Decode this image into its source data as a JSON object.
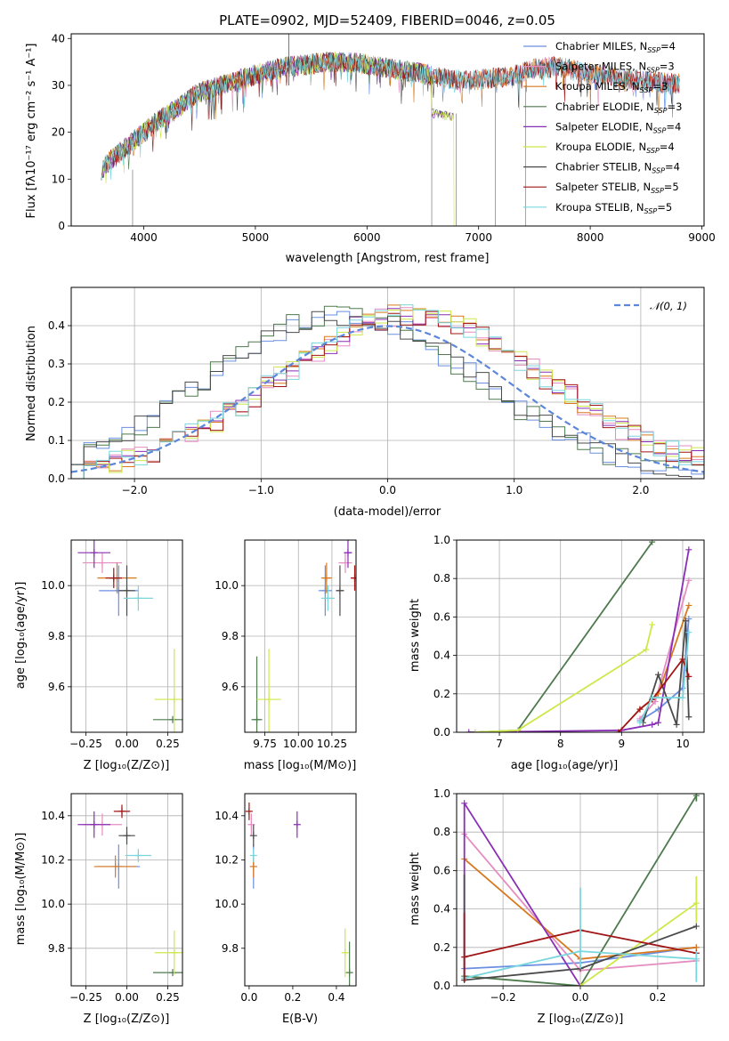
{
  "colors": {
    "Chabrier MILES": "#6a8fe0",
    "Salpeter MILES": "#e58cc0",
    "Kroupa MILES": "#d8791f",
    "Chabrier ELODIE": "#4e7a4e",
    "Salpeter ELODIE": "#8a2fb5",
    "Kroupa ELODIE": "#cde84a",
    "Chabrier STELIB": "#4a4a4a",
    "Salpeter STELIB": "#a01515",
    "Kroupa STELIB": "#78d6dd",
    "normal_curve": "#5b86d9",
    "grid": "#b0b0b0"
  },
  "chart_data": [
    {
      "type": "line",
      "title": "PLATE=0902, MJD=52409, FIBERID=0046, z=0.05",
      "xlabel": "wavelength [Angstrom, rest frame]",
      "ylabel": "Flux [fλ10⁻¹⁷ erg cm⁻² s⁻¹ A⁻¹]",
      "xlim": [
        3350,
        9020
      ],
      "ylim": [
        0,
        41
      ],
      "xticks": [
        4000,
        5000,
        6000,
        7000,
        8000,
        9000
      ],
      "yticks": [
        0,
        10,
        20,
        30,
        40
      ],
      "grid": false,
      "legend_position": "top-right",
      "legend": [
        {
          "base": "Chabrier MILES, N",
          "sub": "SSP",
          "tail": "=4"
        },
        {
          "base": "Salpeter MILES, N",
          "sub": "SSP",
          "tail": "=3"
        },
        {
          "base": "Kroupa MILES, N",
          "sub": "SSP",
          "tail": "=3"
        },
        {
          "base": "Chabrier ELODIE, N",
          "sub": "SSP",
          "tail": "=3"
        },
        {
          "base": "Salpeter ELODIE, N",
          "sub": "SSP",
          "tail": "=4"
        },
        {
          "base": "Kroupa ELODIE, N",
          "sub": "SSP",
          "tail": "=4"
        },
        {
          "base": "Chabrier STELIB, N",
          "sub": "SSP",
          "tail": "=4"
        },
        {
          "base": "Salpeter STELIB, N",
          "sub": "SSP",
          "tail": "=5"
        },
        {
          "base": "Kroupa STELIB, N",
          "sub": "SSP",
          "tail": "=5"
        }
      ],
      "continuum_x": [
        3620,
        3700,
        3800,
        3900,
        4000,
        4100,
        4200,
        4300,
        4400,
        4500,
        4700,
        4900,
        5100,
        5300,
        5500,
        5700,
        5900,
        6100,
        6300,
        6500,
        6700,
        6900,
        7100,
        7300,
        7500,
        7700,
        7900,
        8100,
        8300,
        8500,
        8700,
        8800
      ],
      "continuum_y": [
        12,
        14,
        16,
        18,
        20,
        22,
        23.5,
        25,
        27,
        28.5,
        30,
        31.5,
        33,
        34,
        34.5,
        35,
        34.8,
        34,
        33.2,
        32.5,
        31.5,
        31,
        31.5,
        32,
        33.5,
        34,
        33,
        32.2,
        31.5,
        30.8,
        30.5,
        30.3
      ]
    },
    {
      "type": "line",
      "xlabel": "(data-model)/error",
      "ylabel": "Normed distribution",
      "xlim": [
        -2.5,
        2.5
      ],
      "ylim": [
        0,
        0.5
      ],
      "xticks": [
        -2,
        -1,
        0,
        1,
        2
      ],
      "yticks": [
        0.0,
        0.1,
        0.2,
        0.3,
        0.4
      ],
      "grid": true,
      "legend_position": "top-right",
      "legend": [
        "𝒩(0, 1)"
      ],
      "series": [
        {
          "name": "𝒩(0, 1)",
          "kind": "gaussian",
          "mean": 0,
          "sigma": 1
        }
      ]
    },
    {
      "type": "scatter",
      "xlabel": "Z [log₁₀(Z/Z⊙)]",
      "ylabel": "age  [log₁₀(age/yr)]",
      "xlim": [
        -0.34,
        0.34
      ],
      "ylim": [
        9.42,
        10.18
      ],
      "xticks": [
        -0.25,
        0.0,
        0.25
      ],
      "yticks": [
        9.6,
        9.8,
        10.0
      ],
      "grid": true,
      "points": [
        {
          "model": "Chabrier MILES",
          "x": -0.05,
          "y": 9.98,
          "xerr": 0.12,
          "yerr": 0.1
        },
        {
          "model": "Salpeter MILES",
          "x": -0.15,
          "y": 10.09,
          "xerr": 0.12,
          "yerr": 0.04
        },
        {
          "model": "Kroupa MILES",
          "x": -0.06,
          "y": 10.03,
          "xerr": 0.12,
          "yerr": 0.06
        },
        {
          "model": "Chabrier ELODIE",
          "x": 0.28,
          "y": 9.47,
          "xerr": 0.12,
          "yerr": 0.0
        },
        {
          "model": "Salpeter ELODIE",
          "x": -0.2,
          "y": 10.13,
          "xerr": 0.1,
          "yerr": 0.06
        },
        {
          "model": "Kroupa ELODIE",
          "x": 0.29,
          "y": 9.55,
          "xerr": 0.12,
          "yerr": 0.2
        },
        {
          "model": "Chabrier STELIB",
          "x": 0.0,
          "y": 9.98,
          "xerr": 0.05,
          "yerr": 0.1
        },
        {
          "model": "Salpeter STELIB",
          "x": -0.08,
          "y": 10.03,
          "xerr": 0.05,
          "yerr": 0.04
        },
        {
          "model": "Kroupa STELIB",
          "x": 0.07,
          "y": 9.95,
          "xerr": 0.09,
          "yerr": 0.05
        }
      ]
    },
    {
      "type": "scatter",
      "xlabel": "mass [log₁₀(M/M⊙)]",
      "xlim": [
        9.6,
        10.43
      ],
      "ylim": [
        9.42,
        10.18
      ],
      "xticks": [
        9.75,
        10.0,
        10.25
      ],
      "yticks": [
        9.6,
        9.8,
        10.0
      ],
      "grid": true,
      "points": [
        {
          "model": "Chabrier MILES",
          "x": 10.2,
          "y": 9.98,
          "xerr": 0.05,
          "yerr": 0.1
        },
        {
          "model": "Salpeter MILES",
          "x": 10.35,
          "y": 10.09,
          "xerr": 0.05,
          "yerr": 0.04
        },
        {
          "model": "Kroupa MILES",
          "x": 10.21,
          "y": 10.03,
          "xerr": 0.04,
          "yerr": 0.06
        },
        {
          "model": "Chabrier ELODIE",
          "x": 9.69,
          "y": 9.47,
          "xerr": 0.04,
          "yerr": 0.25
        },
        {
          "model": "Salpeter ELODIE",
          "x": 10.37,
          "y": 10.13,
          "xerr": 0.03,
          "yerr": 0.06
        },
        {
          "model": "Kroupa ELODIE",
          "x": 9.78,
          "y": 9.55,
          "xerr": 0.09,
          "yerr": 0.2
        },
        {
          "model": "Chabrier STELIB",
          "x": 10.31,
          "y": 9.98,
          "xerr": 0.03,
          "yerr": 0.1
        },
        {
          "model": "Salpeter STELIB",
          "x": 10.42,
          "y": 10.03,
          "xerr": 0.03,
          "yerr": 0.05
        },
        {
          "model": "Kroupa STELIB",
          "x": 10.22,
          "y": 9.95,
          "xerr": 0.05,
          "yerr": 0.05
        }
      ]
    },
    {
      "type": "line",
      "xlabel": "age  [log₁₀(age/yr)]",
      "ylabel": "mass weight",
      "xlim": [
        6.3,
        10.35
      ],
      "ylim": [
        0,
        1
      ],
      "xticks": [
        7,
        8,
        9,
        10
      ],
      "yticks": [
        0.0,
        0.2,
        0.4,
        0.6,
        0.8,
        1.0
      ],
      "grid": true,
      "series": [
        {
          "model": "Chabrier MILES",
          "x": [
            9.3,
            9.6,
            10.0,
            10.1
          ],
          "y": [
            0.06,
            0.12,
            0.23,
            0.59
          ]
        },
        {
          "model": "Salpeter MILES",
          "x": [
            9.3,
            9.55,
            10.1
          ],
          "y": [
            0.07,
            0.16,
            0.79
          ]
        },
        {
          "model": "Kroupa MILES",
          "x": [
            9.3,
            9.6,
            10.1
          ],
          "y": [
            0.12,
            0.2,
            0.66
          ]
        },
        {
          "model": "Chabrier ELODIE",
          "x": [
            6.6,
            7.3,
            9.5
          ],
          "y": [
            0.0,
            0.01,
            0.99
          ]
        },
        {
          "model": "Salpeter ELODIE",
          "x": [
            6.5,
            9.0,
            9.5,
            9.6,
            10.1
          ],
          "y": [
            0.0,
            0.01,
            0.04,
            0.05,
            0.95
          ]
        },
        {
          "model": "Kroupa ELODIE",
          "x": [
            6.6,
            7.3,
            9.4,
            9.5
          ],
          "y": [
            0.0,
            0.01,
            0.43,
            0.56
          ]
        },
        {
          "model": "Chabrier STELIB",
          "x": [
            9.35,
            9.6,
            9.9,
            10.05,
            10.1
          ],
          "y": [
            0.05,
            0.3,
            0.04,
            0.58,
            0.08
          ]
        },
        {
          "model": "Salpeter STELIB",
          "x": [
            8.95,
            9.3,
            9.5,
            10.0,
            10.1
          ],
          "y": [
            0.0,
            0.12,
            0.17,
            0.38,
            0.29
          ]
        },
        {
          "model": "Kroupa STELIB",
          "x": [
            9.3,
            9.5,
            10.0,
            10.1
          ],
          "y": [
            0.05,
            0.18,
            0.18,
            0.52
          ]
        }
      ]
    },
    {
      "type": "scatter",
      "xlabel": "Z [log₁₀(Z/Z⊙)]",
      "ylabel": "mass [log₁₀(M/M⊙)]",
      "xlim": [
        -0.34,
        0.34
      ],
      "ylim": [
        9.63,
        10.5
      ],
      "xticks": [
        -0.25,
        0.0,
        0.25
      ],
      "yticks": [
        9.8,
        10.0,
        10.2,
        10.4
      ],
      "grid": true,
      "points": [
        {
          "model": "Chabrier MILES",
          "x": -0.05,
          "y": 10.17,
          "xerr": 0.13,
          "yerr": 0.1
        },
        {
          "model": "Salpeter MILES",
          "x": -0.15,
          "y": 10.36,
          "xerr": 0.12,
          "yerr": 0.05
        },
        {
          "model": "Kroupa MILES",
          "x": -0.07,
          "y": 10.17,
          "xerr": 0.13,
          "yerr": 0.05
        },
        {
          "model": "Chabrier ELODIE",
          "x": 0.28,
          "y": 9.69,
          "xerr": 0.12,
          "yerr": 0.0
        },
        {
          "model": "Salpeter ELODIE",
          "x": -0.2,
          "y": 10.36,
          "xerr": 0.1,
          "yerr": 0.06
        },
        {
          "model": "Kroupa ELODIE",
          "x": 0.29,
          "y": 9.78,
          "xerr": 0.12,
          "yerr": 0.1
        },
        {
          "model": "Chabrier STELIB",
          "x": 0.0,
          "y": 10.31,
          "xerr": 0.05,
          "yerr": 0.04
        },
        {
          "model": "Salpeter STELIB",
          "x": -0.03,
          "y": 10.42,
          "xerr": 0.05,
          "yerr": 0.03
        },
        {
          "model": "Kroupa STELIB",
          "x": 0.07,
          "y": 10.22,
          "xerr": 0.08,
          "yerr": 0.03
        }
      ]
    },
    {
      "type": "scatter",
      "xlabel": "E(B-V)",
      "xlim": [
        -0.02,
        0.49
      ],
      "ylim": [
        9.63,
        10.5
      ],
      "xticks": [
        0.0,
        0.2,
        0.4
      ],
      "yticks": [
        9.8,
        10.0,
        10.2,
        10.4
      ],
      "grid": false,
      "points": [
        {
          "model": "Chabrier MILES",
          "x": 0.02,
          "y": 10.17,
          "yerr": 0.1
        },
        {
          "model": "Salpeter MILES",
          "x": 0.01,
          "y": 10.36,
          "yerr": 0.05
        },
        {
          "model": "Kroupa MILES",
          "x": 0.02,
          "y": 10.17,
          "yerr": 0.05
        },
        {
          "model": "Chabrier ELODIE",
          "x": 0.46,
          "y": 9.69,
          "yerr": 0.14
        },
        {
          "model": "Salpeter ELODIE",
          "x": 0.22,
          "y": 10.36,
          "yerr": 0.06
        },
        {
          "model": "Kroupa ELODIE",
          "x": 0.44,
          "y": 9.78,
          "yerr": 0.11
        },
        {
          "model": "Chabrier STELIB",
          "x": 0.02,
          "y": 10.31,
          "yerr": 0.05
        },
        {
          "model": "Salpeter STELIB",
          "x": 0.0,
          "y": 10.42,
          "yerr": 0.04
        },
        {
          "model": "Kroupa STELIB",
          "x": 0.02,
          "y": 10.22,
          "yerr": 0.03
        }
      ]
    },
    {
      "type": "line",
      "xlabel": "Z [log₁₀(Z/Z⊙)]",
      "ylabel": "mass weight",
      "xlim": [
        -0.32,
        0.32
      ],
      "ylim": [
        0,
        1
      ],
      "xticks": [
        -0.2,
        0.0,
        0.2
      ],
      "yticks": [
        0.0,
        0.2,
        0.4,
        0.6,
        0.8,
        1.0
      ],
      "grid": true,
      "series": [
        {
          "model": "Chabrier MILES",
          "x": [
            -0.3,
            0.0,
            0.3
          ],
          "y": [
            0.09,
            0.12,
            0.2
          ]
        },
        {
          "model": "Salpeter MILES",
          "x": [
            -0.3,
            0.0,
            0.3
          ],
          "y": [
            0.79,
            0.08,
            0.13
          ]
        },
        {
          "model": "Kroupa MILES",
          "x": [
            -0.3,
            0.0,
            0.3
          ],
          "y": [
            0.66,
            0.14,
            0.2
          ]
        },
        {
          "model": "Chabrier ELODIE",
          "x": [
            -0.3,
            0.0,
            0.3
          ],
          "y": [
            0.05,
            0.0,
            0.99
          ]
        },
        {
          "model": "Salpeter ELODIE",
          "x": [
            -0.3,
            0.0
          ],
          "y": [
            0.95,
            0.0
          ]
        },
        {
          "model": "Kroupa ELODIE",
          "x": [
            0.0,
            0.3
          ],
          "y": [
            0.0,
            0.43
          ]
        },
        {
          "model": "Chabrier STELIB",
          "x": [
            -0.3,
            0.0,
            0.3
          ],
          "y": [
            0.03,
            0.09,
            0.31
          ]
        },
        {
          "model": "Salpeter STELIB",
          "x": [
            -0.3,
            0.0,
            0.3
          ],
          "y": [
            0.15,
            0.29,
            0.17
          ]
        },
        {
          "model": "Kroupa STELIB",
          "x": [
            -0.3,
            0.0,
            0.3
          ],
          "y": [
            0.04,
            0.18,
            0.14
          ]
        }
      ],
      "errorbars": [
        {
          "model": "Salpeter ELODIE",
          "x": -0.3,
          "y": 0.5,
          "yerr": 0.45
        },
        {
          "model": "Chabrier STELIB",
          "x": -0.3,
          "y": 0.3,
          "yerr": 0.28
        },
        {
          "model": "Salpeter STELIB",
          "x": -0.3,
          "y": 0.2,
          "yerr": 0.18
        },
        {
          "model": "Kroupa STELIB",
          "x": 0.0,
          "y": 0.3,
          "yerr": 0.21
        },
        {
          "model": "Kroupa ELODIE",
          "x": 0.3,
          "y": 0.45,
          "yerr": 0.12
        },
        {
          "model": "Chabrier ELODIE",
          "x": 0.3,
          "y": 0.98,
          "yerr": 0.02
        },
        {
          "model": "Kroupa STELIB",
          "x": 0.3,
          "y": 0.1,
          "yerr": 0.08
        }
      ]
    }
  ]
}
